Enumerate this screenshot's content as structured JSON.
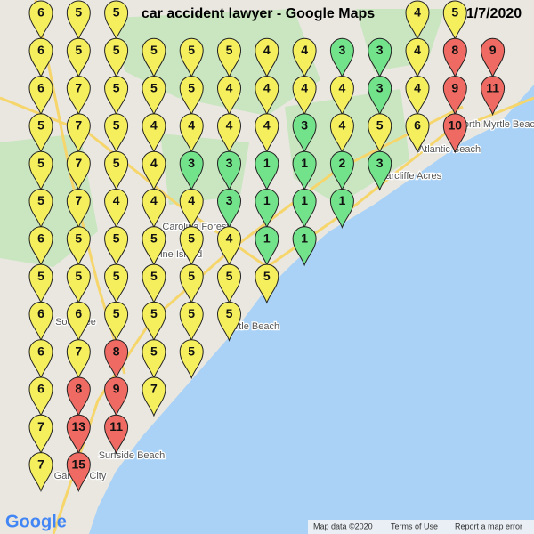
{
  "header": {
    "title": "car accident lawyer - Google Maps",
    "date": "1/7/2020"
  },
  "grid": {
    "ranks": [
      [
        6,
        5,
        5,
        null,
        null,
        null,
        null,
        null,
        null,
        null,
        4,
        5,
        null
      ],
      [
        6,
        5,
        5,
        5,
        5,
        5,
        4,
        4,
        3,
        3,
        4,
        8,
        9
      ],
      [
        6,
        7,
        5,
        5,
        5,
        4,
        4,
        4,
        4,
        3,
        4,
        9,
        11
      ],
      [
        5,
        7,
        5,
        4,
        4,
        4,
        4,
        3,
        4,
        5,
        6,
        10,
        null
      ],
      [
        5,
        7,
        5,
        4,
        3,
        3,
        1,
        1,
        2,
        3,
        null,
        null,
        null
      ],
      [
        5,
        7,
        4,
        4,
        4,
        3,
        1,
        1,
        1,
        null,
        null,
        null,
        null
      ],
      [
        6,
        5,
        5,
        5,
        5,
        4,
        1,
        1,
        null,
        null,
        null,
        null,
        null
      ],
      [
        5,
        5,
        5,
        5,
        5,
        5,
        5,
        null,
        null,
        null,
        null,
        null,
        null
      ],
      [
        6,
        6,
        5,
        5,
        5,
        5,
        null,
        null,
        null,
        null,
        null,
        null,
        null
      ],
      [
        6,
        7,
        8,
        5,
        5,
        null,
        null,
        null,
        null,
        null,
        null,
        null,
        null
      ],
      [
        6,
        8,
        9,
        7,
        null,
        null,
        null,
        null,
        null,
        null,
        null,
        null,
        null
      ],
      [
        7,
        13,
        11,
        null,
        null,
        null,
        null,
        null,
        null,
        null,
        null,
        null,
        null
      ],
      [
        7,
        15,
        null,
        null,
        null,
        null,
        null,
        null,
        null,
        null,
        null,
        null,
        null
      ]
    ],
    "colors": [
      [
        "#f5ef5e",
        "#f5ef5e",
        "#f5ef5e",
        null,
        null,
        null,
        null,
        null,
        null,
        null,
        "#f5ef5e",
        "#f5ef5e",
        null
      ],
      [
        "#f5ef5e",
        "#f5ef5e",
        "#f5ef5e",
        "#f5ef5e",
        "#f5ef5e",
        "#f5ef5e",
        "#f5ef5e",
        "#f5ef5e",
        "#72e38a",
        "#72e38a",
        "#f5ef5e",
        "#ee6a62",
        "#ee6a62"
      ],
      [
        "#f5ef5e",
        "#f5ef5e",
        "#f5ef5e",
        "#f5ef5e",
        "#f5ef5e",
        "#f5ef5e",
        "#f5ef5e",
        "#f5ef5e",
        "#f5ef5e",
        "#72e38a",
        "#f5ef5e",
        "#ee6a62",
        "#ee6a62"
      ],
      [
        "#f5ef5e",
        "#f5ef5e",
        "#f5ef5e",
        "#f5ef5e",
        "#f5ef5e",
        "#f5ef5e",
        "#f5ef5e",
        "#72e38a",
        "#f5ef5e",
        "#f5ef5e",
        "#f5ef5e",
        "#ee6a62",
        null
      ],
      [
        "#f5ef5e",
        "#f5ef5e",
        "#f5ef5e",
        "#f5ef5e",
        "#72e38a",
        "#72e38a",
        "#72e38a",
        "#72e38a",
        "#72e38a",
        "#72e38a",
        null,
        null,
        null
      ],
      [
        "#f5ef5e",
        "#f5ef5e",
        "#f5ef5e",
        "#f5ef5e",
        "#f5ef5e",
        "#72e38a",
        "#72e38a",
        "#72e38a",
        "#72e38a",
        null,
        null,
        null,
        null
      ],
      [
        "#f5ef5e",
        "#f5ef5e",
        "#f5ef5e",
        "#f5ef5e",
        "#f5ef5e",
        "#f5ef5e",
        "#72e38a",
        "#72e38a",
        null,
        null,
        null,
        null,
        null
      ],
      [
        "#f5ef5e",
        "#f5ef5e",
        "#f5ef5e",
        "#f5ef5e",
        "#f5ef5e",
        "#f5ef5e",
        "#f5ef5e",
        null,
        null,
        null,
        null,
        null,
        null
      ],
      [
        "#f5ef5e",
        "#f5ef5e",
        "#f5ef5e",
        "#f5ef5e",
        "#f5ef5e",
        "#f5ef5e",
        null,
        null,
        null,
        null,
        null,
        null,
        null
      ],
      [
        "#f5ef5e",
        "#f5ef5e",
        "#ee6a62",
        "#f5ef5e",
        "#f5ef5e",
        null,
        null,
        null,
        null,
        null,
        null,
        null,
        null
      ],
      [
        "#f5ef5e",
        "#ee6a62",
        "#ee6a62",
        "#f5ef5e",
        null,
        null,
        null,
        null,
        null,
        null,
        null,
        null,
        null
      ],
      [
        "#f5ef5e",
        "#ee6a62",
        "#ee6a62",
        null,
        null,
        null,
        null,
        null,
        null,
        null,
        null,
        null,
        null
      ],
      [
        "#f5ef5e",
        "#ee6a62",
        null,
        null,
        null,
        null,
        null,
        null,
        null,
        null,
        null,
        null,
        null
      ]
    ]
  },
  "places": [
    "Atlantic Beach",
    "North Myrtle Beach",
    "Briarcliffe Acres",
    "Myrtle Beach",
    "Surfside Beach",
    "Garden City",
    "Pine Island",
    "Socastee",
    "Carolina Forest"
  ],
  "footer": {
    "logo": "Google",
    "map_data": "Map data ©2020",
    "terms": "Terms of Use",
    "report": "Report a map error"
  }
}
